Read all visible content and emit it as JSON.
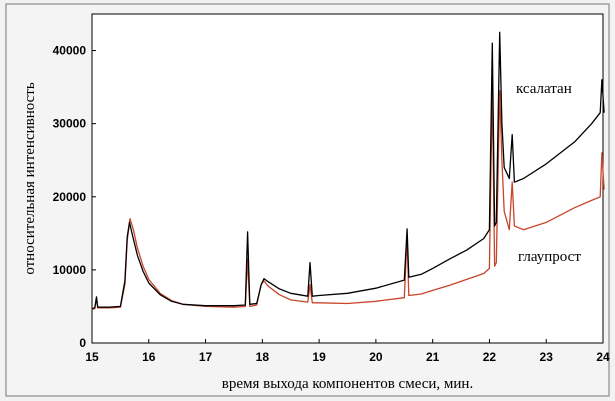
{
  "chart_data": {
    "type": "line",
    "xlabel": "время выхода компонентов смеси, мин.",
    "ylabel": "относительная интенсивность",
    "xlim": [
      15,
      24
    ],
    "ylim": [
      0,
      45000
    ],
    "x_ticks": [
      15,
      16,
      17,
      18,
      19,
      20,
      21,
      22,
      23,
      24
    ],
    "y_ticks": [
      0,
      10000,
      20000,
      30000,
      40000
    ],
    "grid": false,
    "legend": "none",
    "series": [
      {
        "name": "ксалатан",
        "color": "#000000",
        "points": [
          [
            15.0,
            4700
          ],
          [
            15.05,
            4800
          ],
          [
            15.08,
            6300
          ],
          [
            15.1,
            4900
          ],
          [
            15.3,
            4900
          ],
          [
            15.5,
            5000
          ],
          [
            15.58,
            8500
          ],
          [
            15.62,
            14500
          ],
          [
            15.66,
            16500
          ],
          [
            15.72,
            14500
          ],
          [
            15.8,
            12000
          ],
          [
            15.9,
            9800
          ],
          [
            16.0,
            8200
          ],
          [
            16.2,
            6600
          ],
          [
            16.4,
            5700
          ],
          [
            16.6,
            5300
          ],
          [
            17.0,
            5100
          ],
          [
            17.5,
            5100
          ],
          [
            17.7,
            5200
          ],
          [
            17.74,
            15200
          ],
          [
            17.78,
            5300
          ],
          [
            17.9,
            5400
          ],
          [
            17.98,
            8000
          ],
          [
            18.03,
            8800
          ],
          [
            18.1,
            8400
          ],
          [
            18.3,
            7400
          ],
          [
            18.5,
            6800
          ],
          [
            18.8,
            6400
          ],
          [
            18.84,
            11000
          ],
          [
            18.88,
            6400
          ],
          [
            19.0,
            6500
          ],
          [
            19.5,
            6800
          ],
          [
            20.0,
            7500
          ],
          [
            20.5,
            8600
          ],
          [
            20.55,
            15600
          ],
          [
            20.58,
            9000
          ],
          [
            20.8,
            9400
          ],
          [
            21.0,
            10200
          ],
          [
            21.3,
            11500
          ],
          [
            21.6,
            12700
          ],
          [
            21.9,
            14300
          ],
          [
            22.0,
            15500
          ],
          [
            22.05,
            41000
          ],
          [
            22.09,
            16000
          ],
          [
            22.12,
            16500
          ],
          [
            22.18,
            42500
          ],
          [
            22.22,
            30000
          ],
          [
            22.26,
            24000
          ],
          [
            22.35,
            22500
          ],
          [
            22.4,
            28500
          ],
          [
            22.44,
            22000
          ],
          [
            22.6,
            22500
          ],
          [
            23.0,
            24500
          ],
          [
            23.5,
            27500
          ],
          [
            23.8,
            30000
          ],
          [
            23.95,
            31500
          ],
          [
            23.98,
            36000
          ],
          [
            24.02,
            31500
          ]
        ]
      },
      {
        "name": "глаупрост",
        "color": "#c8442a",
        "points": [
          [
            15.0,
            4600
          ],
          [
            15.05,
            4700
          ],
          [
            15.08,
            6200
          ],
          [
            15.1,
            4800
          ],
          [
            15.3,
            4800
          ],
          [
            15.5,
            4900
          ],
          [
            15.58,
            8000
          ],
          [
            15.62,
            14000
          ],
          [
            15.67,
            17000
          ],
          [
            15.73,
            15500
          ],
          [
            15.8,
            13000
          ],
          [
            15.9,
            10500
          ],
          [
            16.0,
            8700
          ],
          [
            16.2,
            6800
          ],
          [
            16.4,
            5800
          ],
          [
            16.6,
            5300
          ],
          [
            17.0,
            5000
          ],
          [
            17.5,
            4900
          ],
          [
            17.7,
            5000
          ],
          [
            17.74,
            11500
          ],
          [
            17.78,
            5000
          ],
          [
            17.9,
            5200
          ],
          [
            17.98,
            8000
          ],
          [
            18.03,
            8500
          ],
          [
            18.1,
            7800
          ],
          [
            18.3,
            6600
          ],
          [
            18.5,
            5900
          ],
          [
            18.8,
            5600
          ],
          [
            18.84,
            8000
          ],
          [
            18.88,
            5500
          ],
          [
            19.0,
            5500
          ],
          [
            19.5,
            5400
          ],
          [
            20.0,
            5700
          ],
          [
            20.5,
            6200
          ],
          [
            20.55,
            14500
          ],
          [
            20.58,
            6500
          ],
          [
            20.8,
            6700
          ],
          [
            21.0,
            7200
          ],
          [
            21.3,
            7900
          ],
          [
            21.6,
            8700
          ],
          [
            21.9,
            9500
          ],
          [
            22.0,
            10200
          ],
          [
            22.05,
            35000
          ],
          [
            22.09,
            10500
          ],
          [
            22.12,
            11000
          ],
          [
            22.18,
            34500
          ],
          [
            22.22,
            25000
          ],
          [
            22.26,
            18000
          ],
          [
            22.35,
            15500
          ],
          [
            22.4,
            22000
          ],
          [
            22.44,
            16000
          ],
          [
            22.6,
            15500
          ],
          [
            23.0,
            16500
          ],
          [
            23.5,
            18500
          ],
          [
            23.8,
            19500
          ],
          [
            23.95,
            20000
          ],
          [
            23.98,
            26000
          ],
          [
            24.02,
            21000
          ]
        ]
      }
    ],
    "annotations": [
      {
        "text": "ксалатан",
        "series": 0
      },
      {
        "text": "глаупрост",
        "series": 1
      }
    ]
  }
}
